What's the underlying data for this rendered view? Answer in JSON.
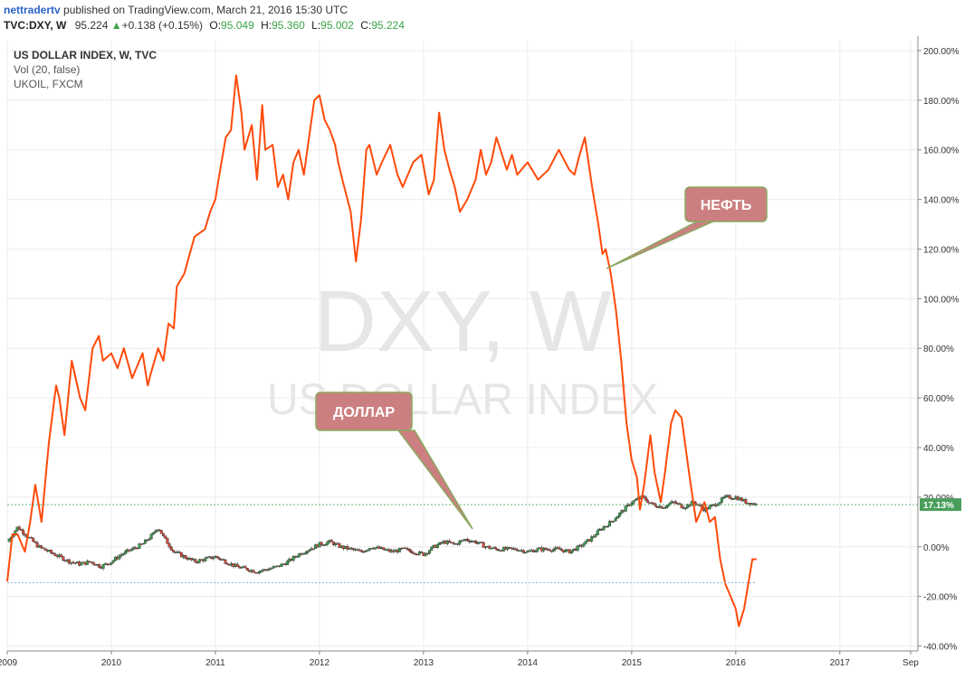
{
  "header": {
    "author": "nettradertv",
    "published": "published on TradingView.com, March 21, 2016 15:30 UTC",
    "symbol": "TVC:DXY, W",
    "last": "95.224",
    "change": "+0.138 (+0.15%)",
    "o_label": "O:",
    "o_val": "95.049",
    "h_label": "H:",
    "h_val": "95.360",
    "l_label": "L:",
    "l_val": "95.002",
    "c_label": "C:",
    "c_val": "95.224"
  },
  "legend": {
    "main": "US DOLLAR INDEX, W, TVC",
    "vol": "Vol (20, false)",
    "compare": "UKOIL, FXCM"
  },
  "watermark": {
    "symbol": "DXY, W",
    "name": "US DOLLAR INDEX"
  },
  "annotations": {
    "oil": "НЕФТЬ",
    "dollar": "ДОЛЛАР"
  },
  "price_tag": "17.13%",
  "colors": {
    "oil": "#ff4a0a",
    "dxy_up": "#3c9e4e",
    "dxy_down": "#d64a3a",
    "callout": "#cc7f80",
    "callout_border": "#8ba85f",
    "tag": "#4a9e5c"
  },
  "chart_data": {
    "type": "line",
    "x_axis": {
      "labels": [
        "2009",
        "2010",
        "2011",
        "2012",
        "2013",
        "2014",
        "2015",
        "2016",
        "2017",
        "Sep"
      ],
      "range": [
        2009.0,
        2017.75
      ]
    },
    "y_axis": {
      "unit": "%",
      "ticks": [
        "200.00%",
        "180.00%",
        "160.00%",
        "140.00%",
        "120.00%",
        "100.00%",
        "80.00%",
        "60.00%",
        "40.00%",
        "20.00%",
        "0.00%",
        "-20.00%",
        "-40.00%"
      ],
      "range": [
        -42,
        204
      ]
    },
    "series": [
      {
        "name": "UKOIL, FXCM",
        "style": "line",
        "x": [
          2009.0,
          2009.05,
          2009.1,
          2009.17,
          2009.22,
          2009.27,
          2009.33,
          2009.4,
          2009.47,
          2009.5,
          2009.55,
          2009.62,
          2009.7,
          2009.75,
          2009.82,
          2009.88,
          2009.92,
          2010.0,
          2010.06,
          2010.12,
          2010.2,
          2010.3,
          2010.35,
          2010.38,
          2010.45,
          2010.5,
          2010.55,
          2010.6,
          2010.63,
          2010.7,
          2010.8,
          2010.9,
          2010.95,
          2011.0,
          2011.03,
          2011.1,
          2011.15,
          2011.2,
          2011.25,
          2011.28,
          2011.35,
          2011.4,
          2011.45,
          2011.48,
          2011.55,
          2011.6,
          2011.65,
          2011.7,
          2011.75,
          2011.8,
          2011.85,
          2011.9,
          2011.95,
          2012.0,
          2012.05,
          2012.1,
          2012.15,
          2012.18,
          2012.22,
          2012.3,
          2012.35,
          2012.4,
          2012.45,
          2012.48,
          2012.55,
          2012.6,
          2012.68,
          2012.75,
          2012.8,
          2012.9,
          2012.98,
          2013.05,
          2013.1,
          2013.15,
          2013.2,
          2013.25,
          2013.3,
          2013.35,
          2013.42,
          2013.5,
          2013.55,
          2013.6,
          2013.65,
          2013.7,
          2013.8,
          2013.85,
          2013.9,
          2014.0,
          2014.1,
          2014.2,
          2014.3,
          2014.4,
          2014.45,
          2014.5,
          2014.55,
          2014.62,
          2014.68,
          2014.72,
          2014.75,
          2014.8,
          2014.85,
          2014.9,
          2014.95,
          2015.0,
          2015.05,
          2015.08,
          2015.12,
          2015.18,
          2015.22,
          2015.28,
          2015.32,
          2015.38,
          2015.42,
          2015.48,
          2015.55,
          2015.62,
          2015.7,
          2015.75,
          2015.8,
          2015.85,
          2015.9,
          2015.95,
          2016.0,
          2016.03,
          2016.08,
          2016.12,
          2016.16,
          2016.2
        ],
        "y": [
          -14,
          5,
          5,
          -2,
          10,
          25,
          10,
          42,
          65,
          60,
          45,
          75,
          60,
          55,
          80,
          85,
          75,
          78,
          72,
          80,
          68,
          78,
          65,
          70,
          80,
          75,
          90,
          88,
          105,
          110,
          125,
          128,
          135,
          140,
          148,
          165,
          168,
          190,
          175,
          160,
          170,
          148,
          178,
          160,
          162,
          145,
          150,
          140,
          155,
          160,
          150,
          165,
          180,
          182,
          172,
          168,
          162,
          155,
          148,
          135,
          115,
          132,
          160,
          162,
          150,
          155,
          162,
          150,
          145,
          155,
          158,
          142,
          148,
          175,
          160,
          152,
          145,
          135,
          140,
          148,
          160,
          150,
          155,
          165,
          152,
          158,
          150,
          155,
          148,
          152,
          160,
          152,
          150,
          158,
          165,
          145,
          130,
          118,
          120,
          110,
          95,
          75,
          50,
          35,
          28,
          15,
          25,
          45,
          30,
          18,
          30,
          50,
          55,
          52,
          30,
          10,
          18,
          10,
          12,
          -5,
          -15,
          -20,
          -25,
          -32,
          -25,
          -15,
          -5,
          -5
        ]
      },
      {
        "name": "US DOLLAR INDEX, W, TVC",
        "style": "candles",
        "x": [
          2009.0,
          2009.1,
          2009.2,
          2009.3,
          2009.4,
          2009.5,
          2009.6,
          2009.7,
          2009.8,
          2009.9,
          2010.0,
          2010.1,
          2010.2,
          2010.3,
          2010.4,
          2010.45,
          2010.5,
          2010.6,
          2010.7,
          2010.8,
          2010.9,
          2011.0,
          2011.1,
          2011.2,
          2011.3,
          2011.4,
          2011.5,
          2011.6,
          2011.7,
          2011.8,
          2011.9,
          2012.0,
          2012.1,
          2012.2,
          2012.3,
          2012.4,
          2012.5,
          2012.6,
          2012.7,
          2012.8,
          2012.9,
          2013.0,
          2013.1,
          2013.2,
          2013.3,
          2013.4,
          2013.5,
          2013.6,
          2013.7,
          2013.8,
          2013.9,
          2014.0,
          2014.1,
          2014.2,
          2014.3,
          2014.4,
          2014.5,
          2014.6,
          2014.7,
          2014.8,
          2014.9,
          2015.0,
          2015.1,
          2015.2,
          2015.3,
          2015.4,
          2015.5,
          2015.6,
          2015.7,
          2015.8,
          2015.9,
          2016.0,
          2016.1,
          2016.2
        ],
        "y": [
          2,
          8,
          4,
          0,
          -2,
          -4,
          -6,
          -7,
          -6,
          -8,
          -6,
          -3,
          -1,
          1,
          5,
          8,
          4,
          -2,
          -4,
          -6,
          -5,
          -4,
          -6,
          -8,
          -9,
          -10,
          -9,
          -8,
          -6,
          -3,
          -1,
          1,
          2,
          0,
          -1,
          -2,
          0,
          -1,
          -2,
          -1,
          -2,
          -3,
          0,
          2,
          1,
          3,
          2,
          0,
          -1,
          -1,
          -1,
          -2,
          -1,
          -1,
          -1,
          -2,
          0,
          3,
          7,
          10,
          14,
          18,
          20,
          17,
          16,
          18,
          16,
          18,
          15,
          17,
          20,
          20,
          18,
          17
        ]
      }
    ]
  }
}
